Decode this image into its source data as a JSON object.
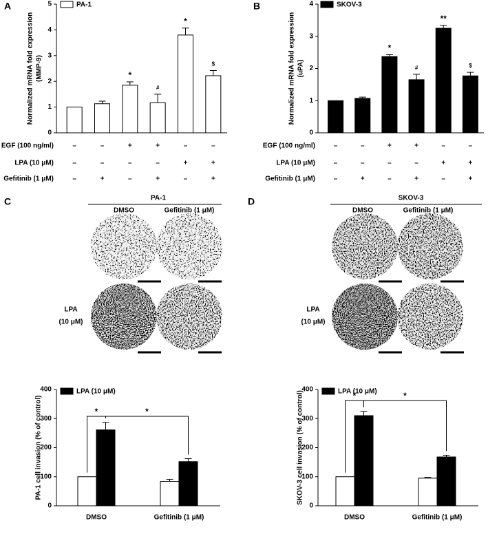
{
  "panels": [
    "A",
    "B",
    "C",
    "D"
  ],
  "chart_data": [
    {
      "type": "bar",
      "ylabel": [
        "Normalized mRNA fold expression",
        "(MMP-9)"
      ],
      "series": [
        {
          "name": "PA-1",
          "color": "#ffffff",
          "values": [
            1,
            1.13,
            1.85,
            1.17,
            3.8,
            2.22
          ],
          "errors": [
            null,
            0.1,
            0.13,
            0.33,
            0.27,
            0.2
          ]
        }
      ],
      "annotations": [
        null,
        null,
        "*",
        "#",
        "*",
        "$"
      ],
      "ylim": [
        0,
        5
      ],
      "yticks": [
        0,
        1,
        2,
        3,
        4,
        5
      ],
      "conditions": [
        {
          "label": "EGF (100 ng/ml)",
          "values": [
            "–",
            "–",
            "+",
            "+",
            "–",
            "–"
          ]
        },
        {
          "label": "LPA (10 μM)",
          "values": [
            "–",
            "–",
            "–",
            "–",
            "+",
            "+"
          ]
        },
        {
          "label": "Gefitinib (1 μM)",
          "values": [
            "–",
            "+",
            "–",
            "+",
            "–",
            "+"
          ]
        }
      ]
    },
    {
      "type": "bar",
      "ylabel": [
        "Normalized mRNA fold expression",
        "(uPA)"
      ],
      "series": [
        {
          "name": "SKOV-3",
          "color": "#000000",
          "values": [
            1,
            1.07,
            2.37,
            1.65,
            3.25,
            1.77
          ],
          "errors": [
            null,
            0.04,
            0.06,
            0.17,
            0.09,
            0.11
          ]
        }
      ],
      "annotations": [
        null,
        null,
        "*",
        "#",
        "**",
        "$"
      ],
      "ylim": [
        0,
        4
      ],
      "yticks": [
        0,
        1,
        2,
        3,
        4
      ],
      "conditions": [
        {
          "label": "EGF (100 ng/ml)",
          "values": [
            "–",
            "–",
            "+",
            "+",
            "–",
            "–"
          ]
        },
        {
          "label": "LPA (10 μM)",
          "values": [
            "–",
            "–",
            "–",
            "–",
            "+",
            "+"
          ]
        },
        {
          "label": "Gefitinib (1 μM)",
          "values": [
            "–",
            "+",
            "–",
            "+",
            "–",
            "+"
          ]
        }
      ]
    },
    {
      "type": "grouped_bar",
      "ylabel": [
        "PA-1 cell invasion (% of control)"
      ],
      "categories": [
        "DMSO",
        "Gefitinib (1 μM)"
      ],
      "series": [
        {
          "color": "#ffffff",
          "values": [
            100,
            84
          ],
          "errors": [
            null,
            7
          ]
        },
        {
          "name": "LPA (10 μM)",
          "color": "#000000",
          "values": [
            261,
            152
          ],
          "errors": [
            26,
            10
          ]
        }
      ],
      "significance": [
        "*",
        "*"
      ],
      "ylim": [
        0,
        400
      ],
      "yticks": [
        0,
        100,
        200,
        300,
        400
      ]
    },
    {
      "type": "grouped_bar",
      "ylabel": [
        "SKOV-3 cell invasion (% of control)"
      ],
      "categories": [
        "DMSO",
        "Gefitinib (1 μM)"
      ],
      "series": [
        {
          "color": "#ffffff",
          "values": [
            100,
            95
          ],
          "errors": [
            null,
            3
          ]
        },
        {
          "name": "LPA (10 μM)",
          "color": "#000000",
          "values": [
            310,
            168
          ],
          "errors": [
            15,
            6
          ]
        }
      ],
      "significance": [
        "*",
        "*"
      ],
      "ylim": [
        0,
        400
      ],
      "yticks": [
        0,
        100,
        200,
        300,
        400
      ]
    }
  ],
  "micrographs": [
    {
      "title": "PA-1",
      "columns": [
        "DMSO",
        "Gefitinib (1 μM)"
      ],
      "row_label": [
        "LPA",
        "(10 μM)"
      ]
    },
    {
      "title": "SKOV-3",
      "columns": [
        "DMSO",
        "Gefitinib (1 μM)"
      ],
      "row_label": [
        "LPA",
        "(10 μM)"
      ]
    }
  ]
}
